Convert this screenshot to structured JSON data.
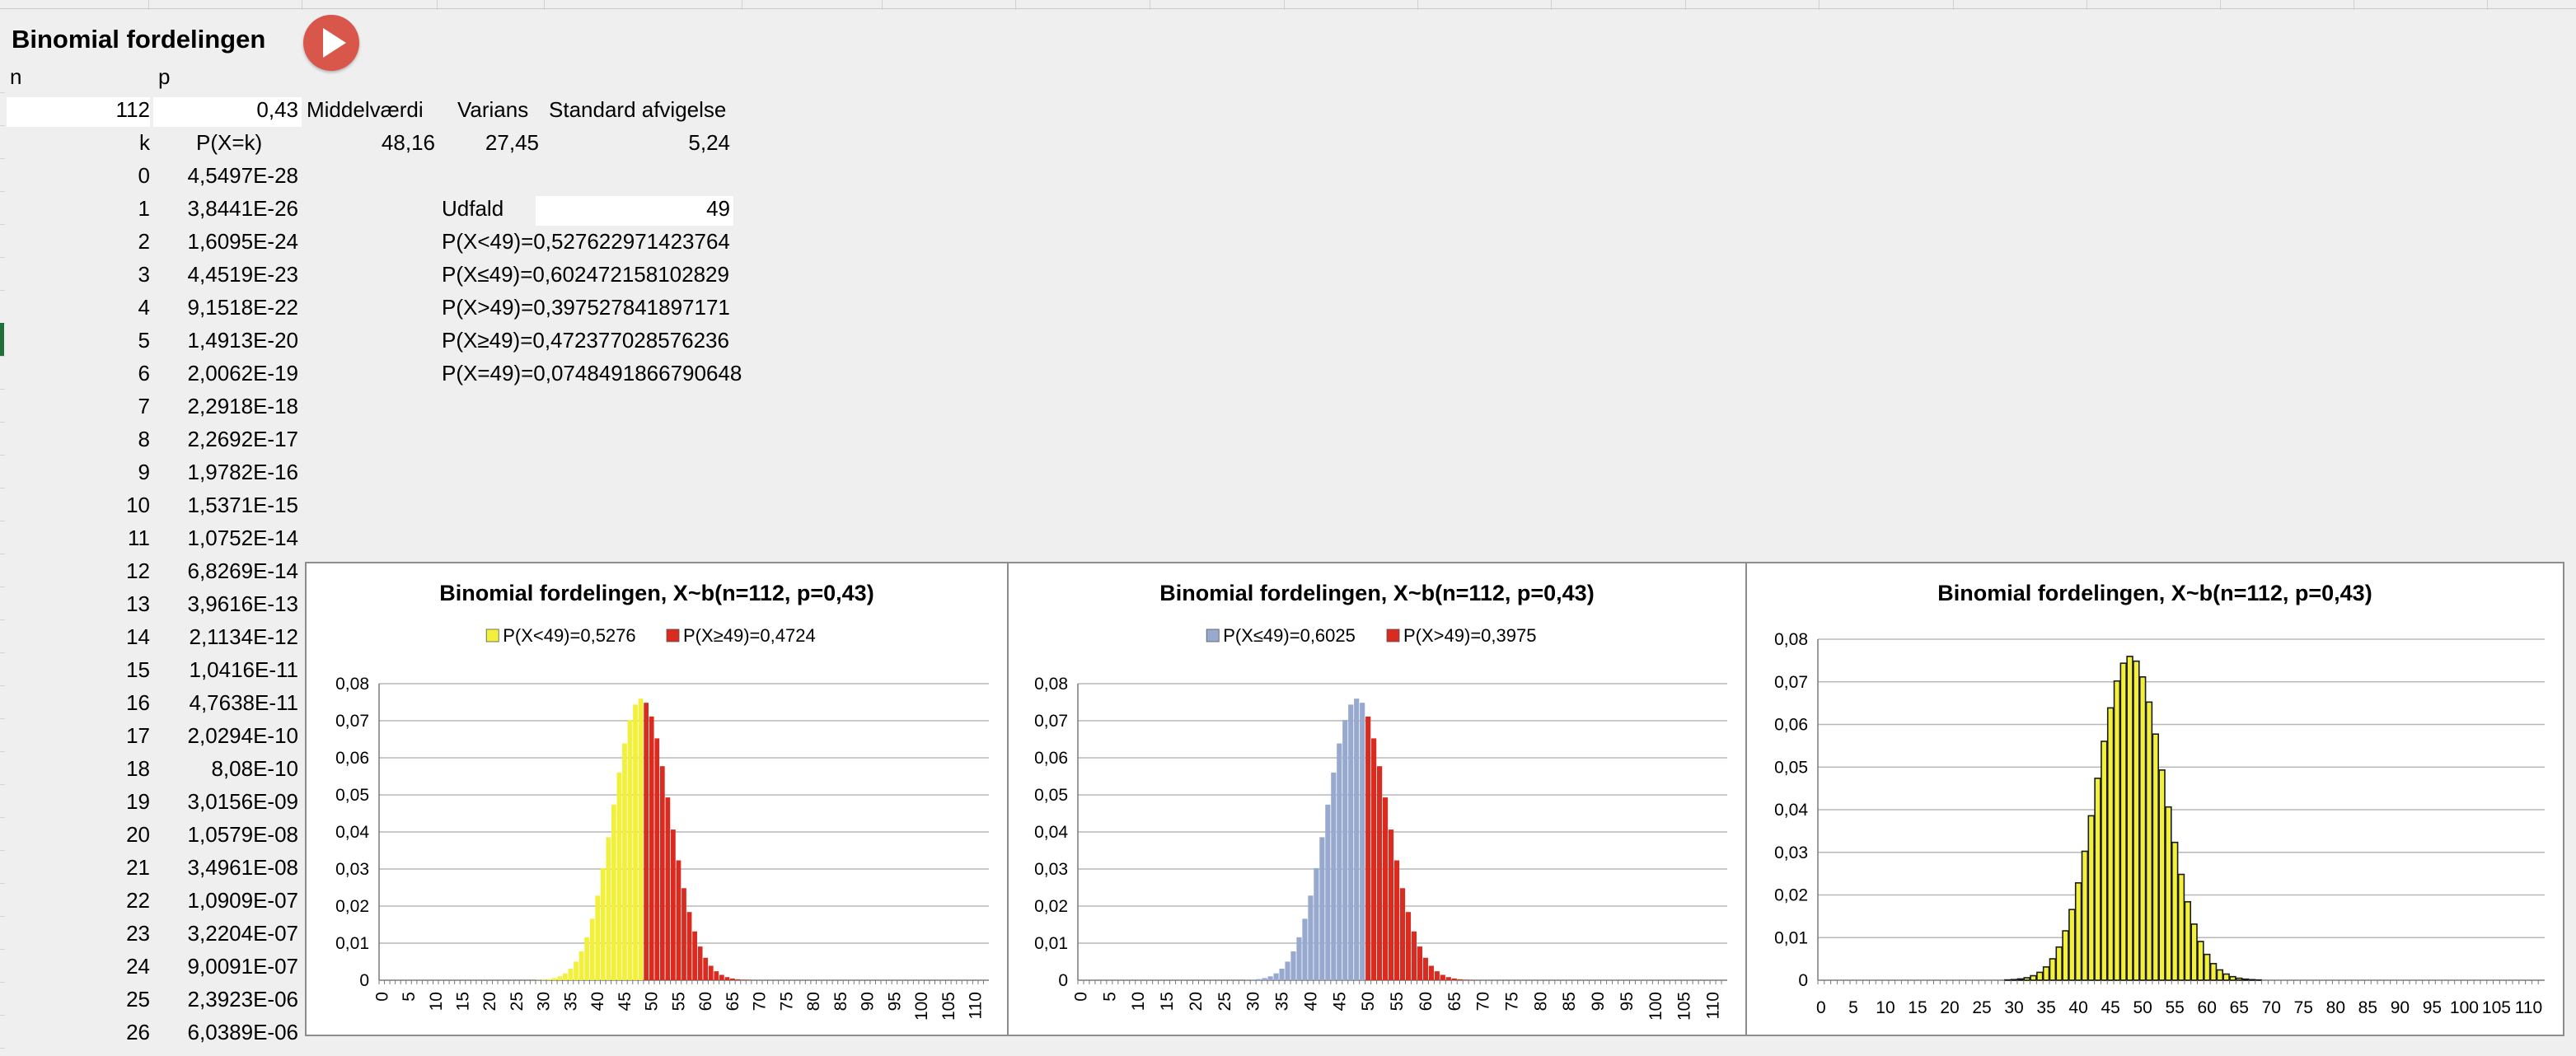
{
  "sheet": {
    "title": "Binomial fordelingen",
    "run_button_icon": "play-icon",
    "headers": {
      "n": "n",
      "p": "p",
      "mean": "Middelværdi",
      "variance": "Varians",
      "std": "Standard afvigelse",
      "k": "k",
      "pxk": "P(X=k)"
    },
    "inputs": {
      "n": "112",
      "p": "0,43"
    },
    "stats": {
      "mean": "48,16",
      "variance": "27,45",
      "std": "5,24"
    },
    "outcome": {
      "label": "Udfald",
      "value": "49"
    },
    "probabilities": [
      "P(X<49)=0,527622971423764",
      "P(X≤49)=0,602472158102829",
      "P(X>49)=0,397527841897171",
      "P(X≥49)=0,472377028576236",
      "P(X=49)=0,0748491866790648"
    ],
    "rows": [
      {
        "k": "0",
        "p": "4,5497E-28"
      },
      {
        "k": "1",
        "p": "3,8441E-26"
      },
      {
        "k": "2",
        "p": "1,6095E-24"
      },
      {
        "k": "3",
        "p": "4,4519E-23"
      },
      {
        "k": "4",
        "p": "9,1518E-22"
      },
      {
        "k": "5",
        "p": "1,4913E-20"
      },
      {
        "k": "6",
        "p": "2,0062E-19"
      },
      {
        "k": "7",
        "p": "2,2918E-18"
      },
      {
        "k": "8",
        "p": "2,2692E-17"
      },
      {
        "k": "9",
        "p": "1,9782E-16"
      },
      {
        "k": "10",
        "p": "1,5371E-15"
      },
      {
        "k": "11",
        "p": "1,0752E-14"
      },
      {
        "k": "12",
        "p": "6,8269E-14"
      },
      {
        "k": "13",
        "p": "3,9616E-13"
      },
      {
        "k": "14",
        "p": "2,1134E-12"
      },
      {
        "k": "15",
        "p": "1,0416E-11"
      },
      {
        "k": "16",
        "p": "4,7638E-11"
      },
      {
        "k": "17",
        "p": "2,0294E-10"
      },
      {
        "k": "18",
        "p": "8,08E-10"
      },
      {
        "k": "19",
        "p": "3,0156E-09"
      },
      {
        "k": "20",
        "p": "1,0579E-08"
      },
      {
        "k": "21",
        "p": "3,4961E-08"
      },
      {
        "k": "22",
        "p": "1,0909E-07"
      },
      {
        "k": "23",
        "p": "3,2204E-07"
      },
      {
        "k": "24",
        "p": "9,0091E-07"
      },
      {
        "k": "25",
        "p": "2,3923E-06"
      },
      {
        "k": "26",
        "p": "6,0389E-06"
      }
    ]
  },
  "chart_data": [
    {
      "type": "bar",
      "title": "Binomial fordelingen, X~b(n=112, p=0,43)",
      "legend_placement": "top",
      "series": [
        {
          "name": "P(X<49)=0,5276",
          "color": "#f2f03a",
          "x_range": [
            0,
            48
          ]
        },
        {
          "name": "P(X≥49)=0,4724",
          "color": "#d92b1f",
          "x_range": [
            49,
            112
          ]
        }
      ],
      "distribution": {
        "n": 112,
        "p": 0.43
      },
      "x_ticks": [
        "0",
        "5",
        "10",
        "15",
        "20",
        "25",
        "30",
        "35",
        "40",
        "45",
        "50",
        "55",
        "60",
        "65",
        "70",
        "75",
        "80",
        "85",
        "90",
        "95",
        "100",
        "105",
        "110"
      ],
      "y_ticks": [
        "0",
        "0,01",
        "0,02",
        "0,03",
        "0,04",
        "0,05",
        "0,06",
        "0,07",
        "0,08"
      ],
      "xlim": [
        0,
        112
      ],
      "ylim": [
        0,
        0.08
      ],
      "grid": true
    },
    {
      "type": "bar",
      "title": "Binomial fordelingen, X~b(n=112, p=0,43)",
      "legend_placement": "top",
      "series": [
        {
          "name": "P(X≤49)=0,6025",
          "color": "#97a9cf",
          "x_range": [
            0,
            49
          ]
        },
        {
          "name": "P(X>49)=0,3975",
          "color": "#d92b1f",
          "x_range": [
            50,
            112
          ]
        }
      ],
      "distribution": {
        "n": 112,
        "p": 0.43
      },
      "x_ticks": [
        "0",
        "5",
        "10",
        "15",
        "20",
        "25",
        "30",
        "35",
        "40",
        "45",
        "50",
        "55",
        "60",
        "65",
        "70",
        "75",
        "80",
        "85",
        "90",
        "95",
        "100",
        "105",
        "110"
      ],
      "y_ticks": [
        "0",
        "0,01",
        "0,02",
        "0,03",
        "0,04",
        "0,05",
        "0,06",
        "0,07",
        "0,08"
      ],
      "xlim": [
        0,
        112
      ],
      "ylim": [
        0,
        0.08
      ],
      "grid": true
    },
    {
      "type": "bar",
      "title": "Binomial fordelingen, X~b(n=112, p=0,43)",
      "series": [
        {
          "color": "#f2f03a",
          "x_range": [
            0,
            112
          ]
        }
      ],
      "distribution": {
        "n": 112,
        "p": 0.43
      },
      "x_ticks": [
        "0",
        "5",
        "10",
        "15",
        "20",
        "25",
        "30",
        "35",
        "40",
        "45",
        "50",
        "55",
        "60",
        "65",
        "70",
        "75",
        "80",
        "85",
        "90",
        "95",
        "100",
        "105",
        "110"
      ],
      "y_ticks": [
        "0",
        "0,01",
        "0,02",
        "0,03",
        "0,04",
        "0,05",
        "0,06",
        "0,07",
        "0,08"
      ],
      "xlim": [
        0,
        112
      ],
      "ylim": [
        0,
        0.08
      ],
      "grid": true,
      "bar_outline": true
    }
  ]
}
